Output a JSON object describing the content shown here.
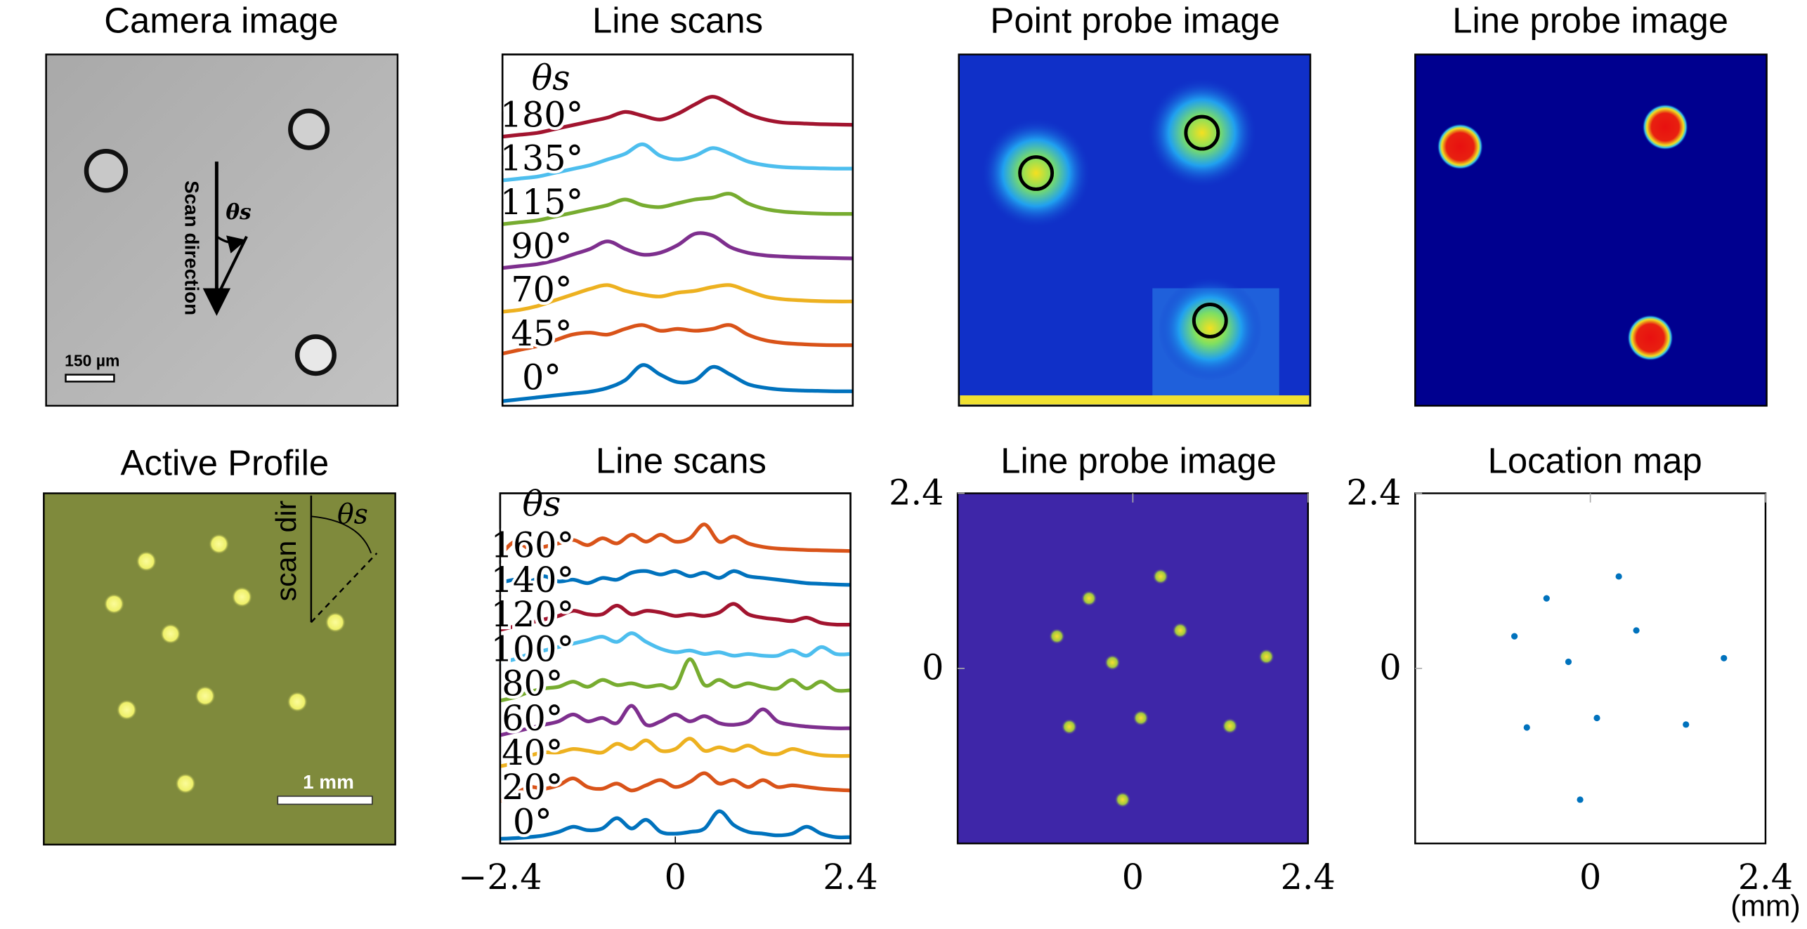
{
  "chart_data": [
    {
      "type": "image",
      "title": "Camera image",
      "annotations": [
        "Scan direction",
        "θs"
      ],
      "scale_bar": "150 µm"
    },
    {
      "type": "line",
      "title": "Line scans",
      "legend_title": "θs",
      "series": [
        {
          "name": "0°",
          "color": "#0072bd",
          "values": [
            0,
            0.05,
            0.1,
            0.15,
            0.2,
            0.25,
            0.35,
            0.55,
            0.95,
            0.7,
            0.5,
            0.55,
            0.9,
            0.7,
            0.45,
            0.35,
            0.3,
            0.28,
            0.27,
            0.26,
            0.26
          ]
        },
        {
          "name": "45°",
          "color": "#d95319",
          "values": [
            0.1,
            0.2,
            0.3,
            0.45,
            0.6,
            0.65,
            0.6,
            0.75,
            0.85,
            0.7,
            0.75,
            0.7,
            0.75,
            0.85,
            0.6,
            0.45,
            0.38,
            0.35,
            0.33,
            0.32,
            0.32
          ]
        },
        {
          "name": "70°",
          "color": "#edb120",
          "values": [
            0.05,
            0.1,
            0.2,
            0.35,
            0.5,
            0.65,
            0.75,
            0.6,
            0.5,
            0.45,
            0.55,
            0.6,
            0.7,
            0.75,
            0.6,
            0.45,
            0.38,
            0.35,
            0.33,
            0.32,
            0.32
          ]
        },
        {
          "name": "90°",
          "color": "#7e2f8e",
          "values": [
            0.05,
            0.1,
            0.15,
            0.25,
            0.4,
            0.55,
            0.75,
            0.55,
            0.4,
            0.45,
            0.65,
            0.95,
            0.9,
            0.6,
            0.45,
            0.38,
            0.35,
            0.33,
            0.32,
            0.31,
            0.3
          ]
        },
        {
          "name": "115°",
          "color": "#77ac30",
          "values": [
            0.05,
            0.1,
            0.15,
            0.25,
            0.35,
            0.45,
            0.55,
            0.7,
            0.55,
            0.5,
            0.6,
            0.7,
            0.75,
            0.85,
            0.6,
            0.45,
            0.38,
            0.35,
            0.33,
            0.32,
            0.32
          ]
        },
        {
          "name": "135°",
          "color": "#4dbeee",
          "values": [
            0.05,
            0.1,
            0.15,
            0.25,
            0.35,
            0.45,
            0.6,
            0.75,
            1.0,
            0.7,
            0.6,
            0.7,
            0.9,
            0.75,
            0.55,
            0.45,
            0.4,
            0.38,
            0.37,
            0.36,
            0.36
          ]
        },
        {
          "name": "180°",
          "color": "#a2142f",
          "values": [
            0.05,
            0.1,
            0.15,
            0.25,
            0.35,
            0.45,
            0.55,
            0.7,
            0.6,
            0.5,
            0.65,
            0.9,
            1.1,
            0.9,
            0.65,
            0.5,
            0.42,
            0.4,
            0.38,
            0.37,
            0.36
          ]
        }
      ]
    },
    {
      "type": "image",
      "title": "Point probe image"
    },
    {
      "type": "image",
      "title": "Line probe image"
    },
    {
      "type": "image",
      "title": "Active Profile",
      "annotations": [
        "scan dir",
        "θs"
      ],
      "scale_bar": "1 mm"
    },
    {
      "type": "line",
      "title": "Line scans",
      "legend_title": "θs",
      "x": [
        -2.4,
        -2.2,
        -2.0,
        -1.8,
        -1.6,
        -1.4,
        -1.2,
        -1.0,
        -0.8,
        -0.6,
        -0.4,
        -0.2,
        0,
        0.2,
        0.4,
        0.6,
        0.8,
        1.0,
        1.2,
        1.4,
        1.6,
        1.8,
        2.0,
        2.2,
        2.4
      ],
      "xlim": [
        -2.4,
        2.4
      ],
      "xticks": [
        {
          "value": -2.4,
          "label": "−2.4"
        },
        0,
        2.4
      ],
      "series": [
        {
          "name": "0°",
          "color": "#0072bd",
          "values": [
            0,
            0.02,
            0.05,
            0.1,
            0.2,
            0.35,
            0.25,
            0.3,
            0.6,
            0.3,
            0.55,
            0.2,
            0.15,
            0.2,
            0.3,
            0.8,
            0.4,
            0.2,
            0.15,
            0.1,
            0.15,
            0.35,
            0.15,
            0.05,
            0.05
          ]
        },
        {
          "name": "20°",
          "color": "#d95319",
          "values": [
            0.1,
            0.3,
            0.5,
            0.45,
            0.55,
            0.75,
            0.5,
            0.45,
            0.6,
            0.4,
            0.55,
            0.7,
            0.5,
            0.65,
            0.9,
            0.6,
            0.7,
            0.5,
            0.7,
            0.5,
            0.55,
            0.5,
            0.45,
            0.42,
            0.4
          ]
        },
        {
          "name": "40°",
          "color": "#edb120",
          "values": [
            0.1,
            0.2,
            0.4,
            0.5,
            0.5,
            0.6,
            0.55,
            0.5,
            0.75,
            0.6,
            0.85,
            0.55,
            0.6,
            0.9,
            0.55,
            0.65,
            0.55,
            0.7,
            0.5,
            0.45,
            0.6,
            0.5,
            0.42,
            0.4,
            0.4
          ]
        },
        {
          "name": "60°",
          "color": "#7e2f8e",
          "values": [
            0,
            0.1,
            0.2,
            0.3,
            0.4,
            0.6,
            0.4,
            0.5,
            0.35,
            0.85,
            0.3,
            0.4,
            0.6,
            0.4,
            0.55,
            0.35,
            0.3,
            0.4,
            0.75,
            0.4,
            0.3,
            0.25,
            0.22,
            0.2,
            0.2
          ]
        },
        {
          "name": "80°",
          "color": "#77ac30",
          "values": [
            0,
            0.1,
            0.25,
            0.35,
            0.4,
            0.55,
            0.4,
            0.6,
            0.45,
            0.5,
            0.4,
            0.45,
            0.4,
            1.2,
            0.45,
            0.6,
            0.4,
            0.5,
            0.4,
            0.35,
            0.6,
            0.35,
            0.55,
            0.3,
            0.3
          ]
        },
        {
          "name": "100°",
          "color": "#4dbeee",
          "values": [
            0.1,
            0.2,
            0.35,
            0.45,
            0.55,
            0.65,
            0.75,
            0.85,
            0.7,
            0.95,
            0.7,
            0.5,
            0.4,
            0.45,
            0.35,
            0.4,
            0.3,
            0.35,
            0.3,
            0.3,
            0.45,
            0.3,
            0.55,
            0.35,
            0.35
          ]
        },
        {
          "name": "120°",
          "color": "#a2142f",
          "values": [
            0.05,
            0.15,
            0.25,
            0.35,
            0.45,
            0.6,
            0.5,
            0.5,
            0.75,
            0.5,
            0.6,
            0.55,
            0.45,
            0.5,
            0.45,
            0.55,
            0.8,
            0.5,
            0.4,
            0.35,
            0.3,
            0.4,
            0.25,
            0.2,
            0.2
          ]
        },
        {
          "name": "140°",
          "color": "#0072bd",
          "values": [
            0.4,
            0.5,
            0.45,
            0.6,
            0.45,
            0.5,
            0.4,
            0.55,
            0.5,
            0.7,
            0.75,
            0.65,
            0.75,
            0.6,
            0.7,
            0.55,
            0.75,
            0.6,
            0.55,
            0.5,
            0.45,
            0.4,
            0.38,
            0.36,
            0.35
          ]
        },
        {
          "name": "160°",
          "color": "#d95319",
          "values": [
            0.2,
            0.6,
            0.4,
            0.45,
            0.55,
            0.65,
            0.5,
            0.7,
            0.55,
            0.8,
            0.6,
            0.8,
            0.6,
            0.7,
            1.1,
            0.6,
            0.75,
            0.55,
            0.45,
            0.4,
            0.38,
            0.36,
            0.35,
            0.34,
            0.33
          ]
        }
      ]
    },
    {
      "type": "heatmap",
      "title": "Line probe image",
      "xlim": [
        -2.4,
        2.4
      ],
      "ylim": [
        -2.4,
        2.4
      ],
      "xticks": [
        0,
        2.4
      ],
      "yticks": [
        0,
        2.4
      ],
      "x": [
        0.38,
        -0.6,
        0.65,
        -1.04,
        -0.28,
        1.83,
        0.11,
        -0.87,
        1.33,
        -0.14
      ],
      "y": [
        1.26,
        0.96,
        0.52,
        0.44,
        0.08,
        0.16,
        -0.68,
        -0.8,
        -0.79,
        -1.8
      ]
    },
    {
      "type": "scatter",
      "title": "Location map",
      "color": "#0072bd",
      "xlabel": "(mm)",
      "xlim": [
        -2.4,
        2.4
      ],
      "ylim": [
        -2.4,
        2.4
      ],
      "xticks": [
        0,
        2.4
      ],
      "yticks": [
        0,
        2.4
      ],
      "x": [
        0.39,
        -0.6,
        0.63,
        -1.04,
        -0.3,
        1.83,
        0.09,
        -0.87,
        1.31,
        -0.14
      ],
      "y": [
        1.26,
        0.96,
        0.52,
        0.44,
        0.09,
        0.14,
        -0.68,
        -0.81,
        -0.77,
        -1.8
      ]
    }
  ]
}
